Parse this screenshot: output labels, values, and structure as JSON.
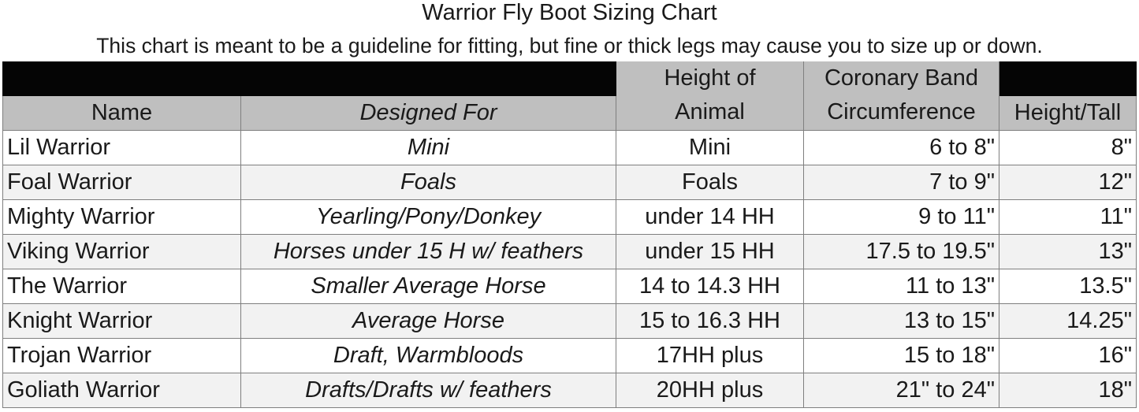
{
  "title": "Warrior Fly Boot Sizing Chart",
  "subtitle": "This chart is meant to be a guideline for fitting, but fine or thick legs may cause you to size up or down.",
  "colors": {
    "header_black": "#050505",
    "header_gray": "#bfbfbf",
    "row_alt": "#f2f2f2",
    "grid": "#7f7f7f"
  },
  "table": {
    "header_top": {
      "height": "Height of",
      "coronary": "Coronary Band"
    },
    "columns": [
      "Name",
      "Designed For",
      "Animal",
      "Circumference",
      "Height/Tall"
    ],
    "rows": [
      [
        "Lil Warrior",
        "Mini",
        "Mini",
        "6 to 8\"",
        "8\""
      ],
      [
        "Foal Warrior",
        "Foals",
        "Foals",
        "7 to 9\"",
        "12\""
      ],
      [
        "Mighty Warrior",
        "Yearling/Pony/Donkey",
        "under 14 HH",
        "9 to 11\"",
        "11\""
      ],
      [
        "Viking Warrior",
        "Horses under 15 H w/ feathers",
        "under 15 HH",
        "17.5 to  19.5\"",
        "13\""
      ],
      [
        "The Warrior",
        "Smaller Average Horse",
        "14 to 14.3 HH",
        "11 to 13\"",
        "13.5\""
      ],
      [
        "Knight Warrior",
        "Average Horse",
        "15 to 16.3 HH",
        "13 to 15\"",
        "14.25\""
      ],
      [
        "Trojan Warrior",
        "Draft, Warmbloods",
        "17HH plus",
        "15 to 18\"",
        "16\""
      ],
      [
        "Goliath Warrior",
        "Drafts/Drafts w/ feathers",
        "20HH plus",
        "21\" to 24\"",
        "18\""
      ]
    ]
  }
}
